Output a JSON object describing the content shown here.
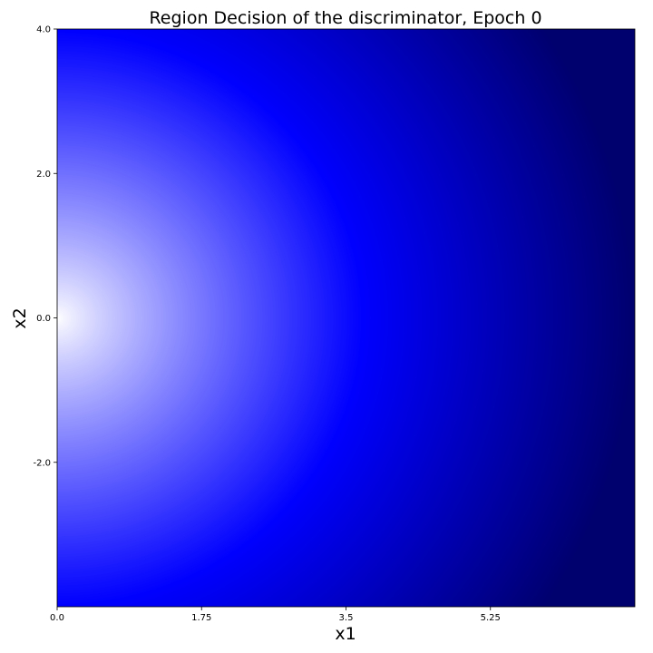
{
  "chart_data": {
    "type": "heatmap",
    "title": "Region Decision of the discriminator, Epoch 0",
    "xlabel": "x1",
    "ylabel": "x2",
    "xlim": [
      0.0,
      7.0
    ],
    "ylim": [
      -4.0,
      4.0
    ],
    "x_ticks": [
      {
        "value": 0.0,
        "label": "0.0"
      },
      {
        "value": 1.75,
        "label": "1.75"
      },
      {
        "value": 3.5,
        "label": "3.5"
      },
      {
        "value": 5.25,
        "label": "5.25"
      }
    ],
    "y_ticks": [
      {
        "value": 4.0,
        "label": "4.0"
      },
      {
        "value": 2.0,
        "label": "2.0"
      },
      {
        "value": 0.0,
        "label": "0.0"
      },
      {
        "value": -2.0,
        "label": "-2.0"
      }
    ],
    "grid": false,
    "colormap": {
      "name": "white-blue-navy",
      "stops": [
        {
          "value": 0.0,
          "color": "#ffffff"
        },
        {
          "value": 0.5,
          "color": "#0000ff"
        },
        {
          "value": 1.0,
          "color": "#00006e"
        }
      ]
    },
    "field": {
      "description_center": [
        0.0,
        0.0
      ],
      "decision_radius_at_blue": 3.7,
      "max_radius": 7.0
    }
  }
}
